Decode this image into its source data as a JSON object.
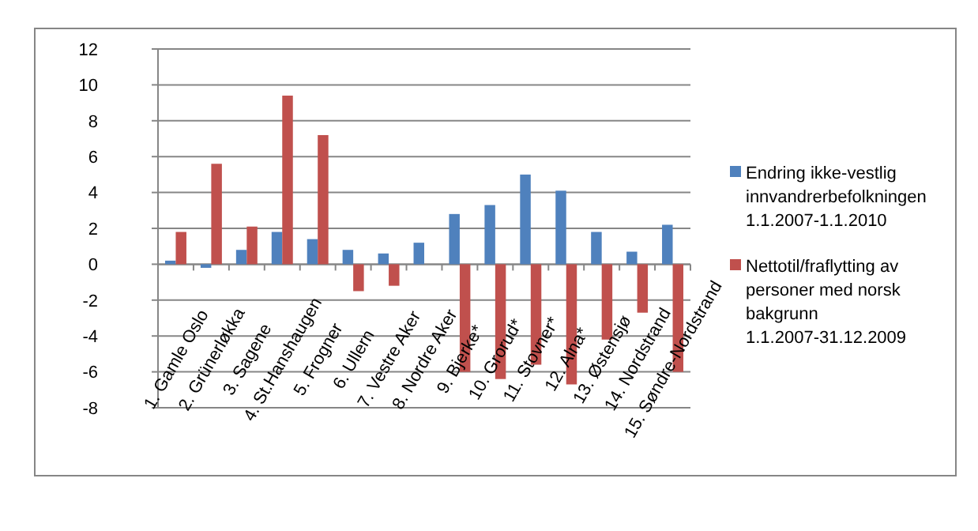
{
  "chart_data": {
    "type": "bar",
    "categories": [
      "1. Gamle Oslo",
      "2. Grünerløkka",
      "3. Sagene",
      "4. St.Hanshaugen",
      "5. Frogner",
      "6. Ullern",
      "7. Vestre Aker",
      "8. Nordre Aker",
      "9. Bjerke*",
      "10. Grorud*",
      "11. Stovner*",
      "12. Alna*",
      "13. Østensjø",
      "14. Nordstrand",
      "15. Søndre-Nordstrand"
    ],
    "series": [
      {
        "name": "Endring ikke-vestlig innvandrerbefolkningen 1.1.2007-1.1.2010",
        "color": "#4f81bd",
        "values": [
          0.2,
          -0.2,
          0.8,
          1.8,
          1.4,
          0.8,
          0.6,
          1.2,
          2.8,
          3.3,
          5.0,
          4.1,
          1.8,
          0.7,
          2.2
        ]
      },
      {
        "name": "Nettotil/fraflytting av personer med norsk bakgrunn 1.1.2007-31.12.2009",
        "color": "#c0504d",
        "values": [
          1.8,
          5.6,
          2.1,
          9.4,
          7.2,
          -1.5,
          -1.2,
          null,
          -6.0,
          -6.4,
          -5.6,
          -6.7,
          -4.2,
          -2.7,
          -6.0
        ]
      }
    ],
    "ylim": [
      -8,
      12
    ],
    "yticks": [
      -8,
      -6,
      -4,
      -2,
      0,
      2,
      4,
      6,
      8,
      10,
      12
    ],
    "grid": "y",
    "legend": "right"
  }
}
